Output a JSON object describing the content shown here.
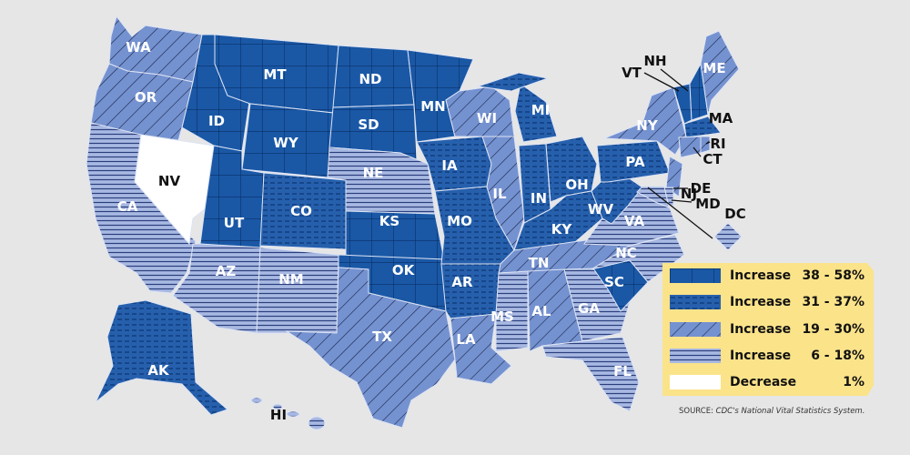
{
  "legend": {
    "items": [
      {
        "label": "Increase",
        "range": "38 - 58%",
        "pattern": "grid"
      },
      {
        "label": "Increase",
        "range": "31 - 37%",
        "pattern": "dashes"
      },
      {
        "label": "Increase",
        "range": "19 - 30%",
        "pattern": "diagonal"
      },
      {
        "label": "Increase",
        "range": "6 - 18%",
        "pattern": "horizontal"
      },
      {
        "label": "Decrease",
        "range": "1%",
        "pattern": "white"
      }
    ]
  },
  "source": {
    "prefix": "SOURCE: ",
    "text": "CDC's National Vital Statistics System."
  },
  "colors": {
    "background": "#e6e6e6",
    "legend_bg": "#fbe38a",
    "dark_blue": "#1a58a6",
    "mid_blue": "#7592d0",
    "light_blue": "#9cb0df",
    "decrease": "#ffffff"
  },
  "states": {
    "WA": {
      "label": "WA",
      "pattern": "diagonal"
    },
    "OR": {
      "label": "OR",
      "pattern": "diagonal"
    },
    "CA": {
      "label": "CA",
      "pattern": "horizontal"
    },
    "NV": {
      "label": "NV",
      "pattern": "white"
    },
    "ID": {
      "label": "ID",
      "pattern": "grid"
    },
    "MT": {
      "label": "MT",
      "pattern": "grid"
    },
    "WY": {
      "label": "WY",
      "pattern": "grid"
    },
    "UT": {
      "label": "UT",
      "pattern": "grid"
    },
    "CO": {
      "label": "CO",
      "pattern": "dashes"
    },
    "AZ": {
      "label": "AZ",
      "pattern": "horizontal"
    },
    "NM": {
      "label": "NM",
      "pattern": "horizontal"
    },
    "ND": {
      "label": "ND",
      "pattern": "grid"
    },
    "SD": {
      "label": "SD",
      "pattern": "grid"
    },
    "NE": {
      "label": "NE",
      "pattern": "horizontal"
    },
    "KS": {
      "label": "KS",
      "pattern": "grid"
    },
    "OK": {
      "label": "OK",
      "pattern": "grid"
    },
    "TX": {
      "label": "TX",
      "pattern": "diagonal"
    },
    "MN": {
      "label": "MN",
      "pattern": "grid"
    },
    "IA": {
      "label": "IA",
      "pattern": "dashes"
    },
    "MO": {
      "label": "MO",
      "pattern": "dashes"
    },
    "AR": {
      "label": "AR",
      "pattern": "dashes"
    },
    "LA": {
      "label": "LA",
      "pattern": "diagonal"
    },
    "WI": {
      "label": "WI",
      "pattern": "diagonal"
    },
    "IL": {
      "label": "IL",
      "pattern": "diagonal"
    },
    "MI": {
      "label": "MI",
      "pattern": "dashes"
    },
    "IN": {
      "label": "IN",
      "pattern": "dashes"
    },
    "OH": {
      "label": "OH",
      "pattern": "dashes"
    },
    "KY": {
      "label": "KY",
      "pattern": "dashes"
    },
    "TN": {
      "label": "TN",
      "pattern": "diagonal"
    },
    "MS": {
      "label": "MS",
      "pattern": "horizontal"
    },
    "AL": {
      "label": "AL",
      "pattern": "diagonal"
    },
    "GA": {
      "label": "GA",
      "pattern": "horizontal"
    },
    "FL": {
      "label": "FL",
      "pattern": "horizontal"
    },
    "SC": {
      "label": "SC",
      "pattern": "grid"
    },
    "NC": {
      "label": "NC",
      "pattern": "horizontal"
    },
    "VA": {
      "label": "VA",
      "pattern": "horizontal"
    },
    "WV": {
      "label": "WV",
      "pattern": "dashes"
    },
    "PA": {
      "label": "PA",
      "pattern": "dashes"
    },
    "NY": {
      "label": "NY",
      "pattern": "diagonal"
    },
    "VT": {
      "label": "VT",
      "pattern": "grid"
    },
    "NH": {
      "label": "NH",
      "pattern": "grid"
    },
    "ME": {
      "label": "ME",
      "pattern": "diagonal"
    },
    "MA": {
      "label": "MA",
      "pattern": "dashes"
    },
    "CT": {
      "label": "CT",
      "pattern": "diagonal"
    },
    "RI": {
      "label": "RI",
      "pattern": "diagonal"
    },
    "NJ": {
      "label": "NJ",
      "pattern": "diagonal"
    },
    "DE": {
      "label": "DE",
      "pattern": "horizontal"
    },
    "MD": {
      "label": "MD",
      "pattern": "horizontal"
    },
    "DC": {
      "label": "DC",
      "pattern": "horizontal"
    },
    "AK": {
      "label": "AK",
      "pattern": "dashes"
    },
    "HI": {
      "label": "HI",
      "pattern": "horizontal"
    }
  }
}
